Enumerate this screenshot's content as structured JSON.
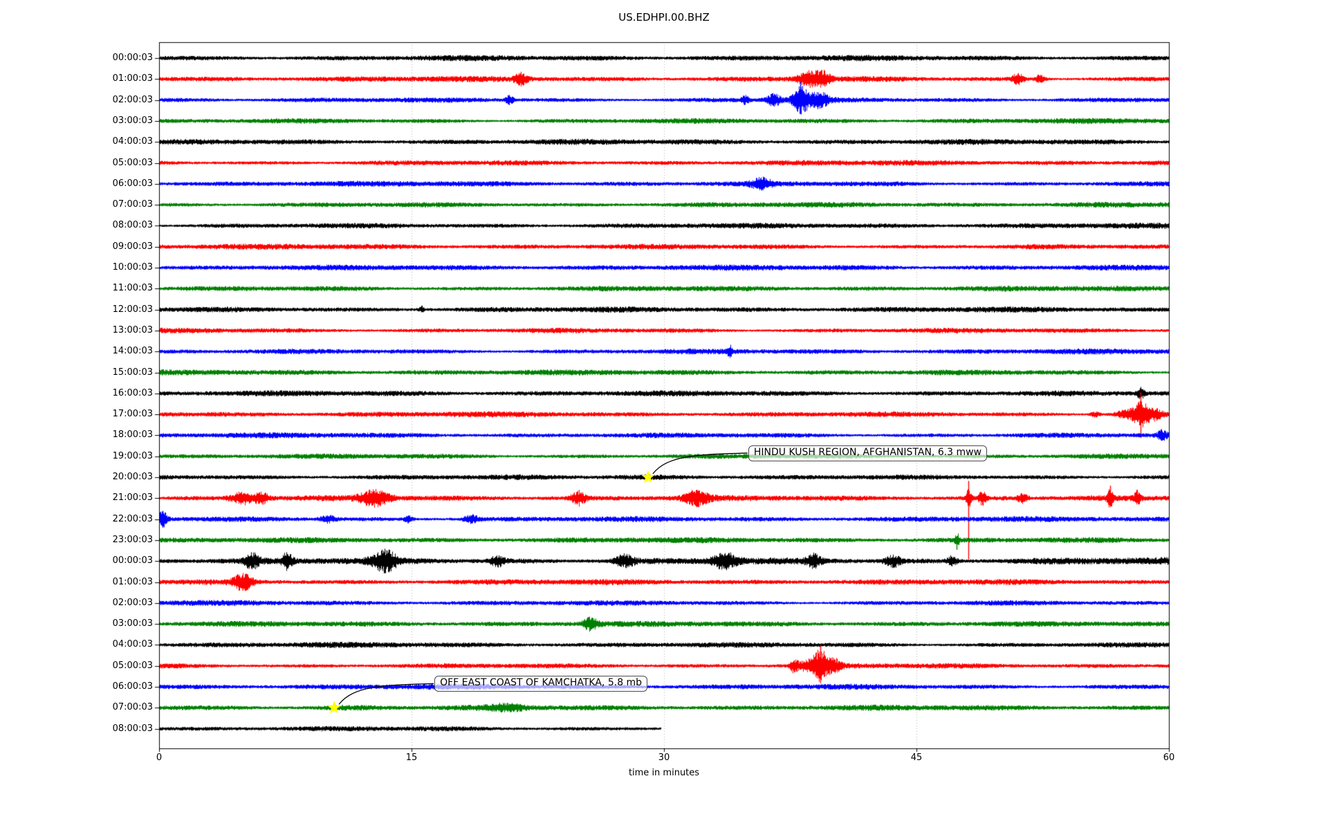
{
  "title": "US.EDHPI.00.BHZ",
  "x_axis": {
    "label": "time in minutes",
    "ticks": [
      "0",
      "15",
      "30",
      "45",
      "60"
    ],
    "tick_values": [
      0,
      15,
      30,
      45,
      60
    ],
    "gridlines_minutes": [
      15,
      30,
      45
    ]
  },
  "colors": {
    "trace_cycle": [
      "#000000",
      "#ff0000",
      "#0000ff",
      "#008000"
    ],
    "grid": "#b0b0b0",
    "star": "#ffff00",
    "axis": "#000000"
  },
  "chart_data": {
    "type": "line",
    "subtype": "seismogram-dayplot",
    "station": "US.EDHPI.00.BHZ",
    "x_range_minutes": [
      0,
      60
    ],
    "rows": [
      {
        "label": "00:00:03",
        "color": "#000000",
        "end": 60,
        "amp": 1.0,
        "events": []
      },
      {
        "label": "01:00:03",
        "color": "#ff0000",
        "end": 60,
        "amp": 1.0,
        "events": [
          {
            "t": 21.5,
            "a": 2.5,
            "w": 0.25
          },
          {
            "t": 38.7,
            "a": 3.0,
            "w": 0.5
          },
          {
            "t": 39.5,
            "a": 2.0,
            "w": 0.3
          },
          {
            "t": 51.0,
            "a": 2.5,
            "w": 0.25
          },
          {
            "t": 52.3,
            "a": 2.5,
            "w": 0.2
          }
        ]
      },
      {
        "label": "02:00:03",
        "color": "#0000ff",
        "end": 60,
        "amp": 1.0,
        "events": [
          {
            "t": 20.8,
            "a": 2.2,
            "w": 0.15
          },
          {
            "t": 34.8,
            "a": 1.8,
            "w": 0.15
          },
          {
            "t": 36.5,
            "a": 2.5,
            "w": 0.3
          },
          {
            "t": 38.1,
            "a": 5.0,
            "w": 0.35,
            "spike_up": 26,
            "spike_down": 20
          },
          {
            "t": 39.2,
            "a": 2.5,
            "w": 0.4
          }
        ]
      },
      {
        "label": "03:00:03",
        "color": "#008000",
        "end": 60,
        "amp": 1.0,
        "events": []
      },
      {
        "label": "04:00:03",
        "color": "#000000",
        "end": 60,
        "amp": 1.0,
        "events": []
      },
      {
        "label": "05:00:03",
        "color": "#ff0000",
        "end": 60,
        "amp": 1.0,
        "events": []
      },
      {
        "label": "06:00:03",
        "color": "#0000ff",
        "end": 60,
        "amp": 1.0,
        "events": [
          {
            "t": 35.8,
            "a": 1.6,
            "w": 0.4
          }
        ]
      },
      {
        "label": "07:00:03",
        "color": "#008000",
        "end": 60,
        "amp": 1.0,
        "events": []
      },
      {
        "label": "08:00:03",
        "color": "#000000",
        "end": 60,
        "amp": 1.0,
        "events": []
      },
      {
        "label": "09:00:03",
        "color": "#ff0000",
        "end": 60,
        "amp": 1.0,
        "events": []
      },
      {
        "label": "10:00:03",
        "color": "#0000ff",
        "end": 60,
        "amp": 1.0,
        "events": []
      },
      {
        "label": "11:00:03",
        "color": "#008000",
        "end": 60,
        "amp": 1.0,
        "events": []
      },
      {
        "label": "12:00:03",
        "color": "#000000",
        "end": 60,
        "amp": 1.0,
        "events": [
          {
            "t": 15.6,
            "a": 1.8,
            "w": 0.1
          }
        ]
      },
      {
        "label": "13:00:03",
        "color": "#ff0000",
        "end": 60,
        "amp": 1.0,
        "events": []
      },
      {
        "label": "14:00:03",
        "color": "#0000ff",
        "end": 60,
        "amp": 1.0,
        "events": [
          {
            "t": 33.9,
            "a": 1.8,
            "w": 0.1
          }
        ]
      },
      {
        "label": "15:00:03",
        "color": "#008000",
        "end": 60,
        "amp": 1.0,
        "events": []
      },
      {
        "label": "16:00:03",
        "color": "#000000",
        "end": 60,
        "amp": 1.0,
        "events": [
          {
            "t": 58.3,
            "a": 2.2,
            "w": 0.15
          }
        ]
      },
      {
        "label": "17:00:03",
        "color": "#ff0000",
        "end": 60,
        "amp": 1.0,
        "events": [
          {
            "t": 55.6,
            "a": 1.8,
            "w": 0.2
          },
          {
            "t": 57.5,
            "a": 2.5,
            "w": 0.5
          },
          {
            "t": 58.3,
            "a": 5.0,
            "w": 0.3,
            "spike_up": 32,
            "spike_down": 34
          },
          {
            "t": 59.0,
            "a": 2.5,
            "w": 0.4
          }
        ]
      },
      {
        "label": "18:00:03",
        "color": "#0000ff",
        "end": 60,
        "amp": 1.0,
        "events": [
          {
            "t": 59.6,
            "a": 1.8,
            "w": 0.2
          }
        ]
      },
      {
        "label": "19:00:03",
        "color": "#008000",
        "end": 60,
        "amp": 1.0,
        "events": []
      },
      {
        "label": "20:00:03",
        "color": "#000000",
        "end": 60,
        "amp": 1.0,
        "events": [
          {
            "t": 30.5,
            "a": 0.5,
            "w": 3.0
          }
        ]
      },
      {
        "label": "21:00:03",
        "color": "#ff0000",
        "end": 60,
        "amp": 1.0,
        "events": [
          {
            "t": 5.0,
            "a": 2.8,
            "w": 0.5
          },
          {
            "t": 6.1,
            "a": 2.2,
            "w": 0.3
          },
          {
            "t": 12.8,
            "a": 2.8,
            "w": 0.6
          },
          {
            "t": 24.9,
            "a": 2.8,
            "w": 0.3
          },
          {
            "t": 31.9,
            "a": 2.2,
            "w": 0.5
          },
          {
            "t": 48.1,
            "a": 4.0,
            "w": 0.12,
            "spike_up": 25,
            "spike_down": 88
          },
          {
            "t": 48.9,
            "a": 2.8,
            "w": 0.15
          },
          {
            "t": 51.3,
            "a": 2.2,
            "w": 0.2
          },
          {
            "t": 56.5,
            "a": 3.0,
            "w": 0.12,
            "spike_up": 18,
            "spike_down": 8
          },
          {
            "t": 58.1,
            "a": 2.2,
            "w": 0.12
          }
        ]
      },
      {
        "label": "22:00:03",
        "color": "#0000ff",
        "end": 60,
        "amp": 1.0,
        "events": [
          {
            "t": 0.2,
            "a": 3.5,
            "w": 0.2,
            "spike_up": 12,
            "spike_down": 12
          },
          {
            "t": 10.0,
            "a": 1.8,
            "w": 0.3
          },
          {
            "t": 14.8,
            "a": 1.8,
            "w": 0.2
          },
          {
            "t": 18.5,
            "a": 2.0,
            "w": 0.3
          }
        ]
      },
      {
        "label": "23:00:03",
        "color": "#008000",
        "end": 60,
        "amp": 1.0,
        "events": [
          {
            "t": 47.4,
            "a": 2.5,
            "w": 0.08,
            "spike_up": 4,
            "spike_down": 14
          }
        ]
      },
      {
        "label": "00:00:03",
        "color": "#000000",
        "end": 60,
        "amp": 1.35,
        "events": [
          {
            "t": 5.5,
            "a": 2.0,
            "w": 0.3
          },
          {
            "t": 7.6,
            "a": 2.2,
            "w": 0.2
          },
          {
            "t": 13.4,
            "a": 2.5,
            "w": 0.5
          },
          {
            "t": 20.1,
            "a": 2.0,
            "w": 0.3
          },
          {
            "t": 27.6,
            "a": 2.2,
            "w": 0.4
          },
          {
            "t": 33.6,
            "a": 2.5,
            "w": 0.5
          },
          {
            "t": 38.9,
            "a": 1.8,
            "w": 0.3
          },
          {
            "t": 43.6,
            "a": 2.0,
            "w": 0.3
          },
          {
            "t": 47.1,
            "a": 2.0,
            "w": 0.2
          }
        ]
      },
      {
        "label": "01:00:03",
        "color": "#ff0000",
        "end": 60,
        "amp": 1.0,
        "events": [
          {
            "t": 5.0,
            "a": 2.8,
            "w": 0.4
          }
        ]
      },
      {
        "label": "02:00:03",
        "color": "#0000ff",
        "end": 60,
        "amp": 1.0,
        "events": []
      },
      {
        "label": "03:00:03",
        "color": "#008000",
        "end": 60,
        "amp": 1.0,
        "events": [
          {
            "t": 25.6,
            "a": 2.3,
            "w": 0.3
          }
        ]
      },
      {
        "label": "04:00:03",
        "color": "#000000",
        "end": 60,
        "amp": 1.0,
        "events": []
      },
      {
        "label": "05:00:03",
        "color": "#ff0000",
        "end": 60,
        "amp": 1.0,
        "events": [
          {
            "t": 37.7,
            "a": 2.8,
            "w": 0.15
          },
          {
            "t": 38.6,
            "a": 2.2,
            "w": 0.5
          },
          {
            "t": 39.3,
            "a": 5.0,
            "w": 0.3,
            "spike_up": 30,
            "spike_down": 20
          },
          {
            "t": 40.1,
            "a": 2.0,
            "w": 0.3
          }
        ]
      },
      {
        "label": "06:00:03",
        "color": "#0000ff",
        "end": 60,
        "amp": 1.0,
        "events": []
      },
      {
        "label": "07:00:03",
        "color": "#008000",
        "end": 60,
        "amp": 1.0,
        "events": [
          {
            "t": 11.5,
            "a": 0.5,
            "w": 1.5
          },
          {
            "t": 20.7,
            "a": 0.9,
            "w": 0.8
          }
        ]
      },
      {
        "label": "08:00:03",
        "color": "#000000",
        "end": 29.8,
        "amp": 1.0,
        "events": []
      }
    ],
    "annotations": [
      {
        "text": "HINDU KUSH REGION, AFGHANISTAN, 6.3 mww",
        "row_index": 20,
        "t_min": 29.05,
        "marker": "yellow-star"
      },
      {
        "text": "OFF EAST COAST OF KAMCHATKA, 5.8 mb",
        "row_index": 31,
        "t_min": 10.4,
        "marker": "yellow-star"
      }
    ]
  }
}
